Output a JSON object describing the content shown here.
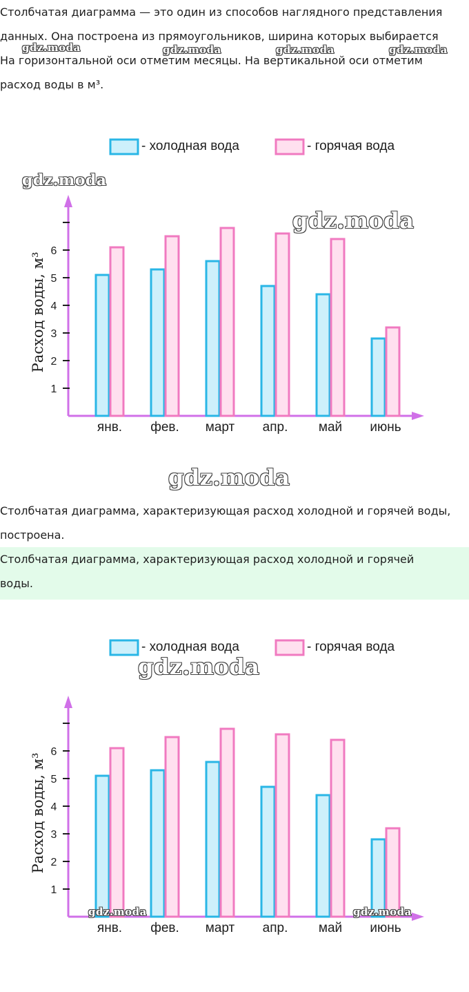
{
  "intro": {
    "line1": "Столбчатая диаграмма — это один из способов наглядного представления",
    "line2": "данных. Она построена из прямоугольников, ширина которых выбирается",
    "line3": "На горизонтальной оси отметим месяцы. На вертикальной оси отметим",
    "line4": "расход воды в м³."
  },
  "middle_text": {
    "line1": "Столбчатая диаграмма, характеризующая расход холодной и горячей воды,",
    "line2": "построена."
  },
  "answer_text": {
    "line1": "Столбчатая диаграмма, характеризующая расход холодной и горячей",
    "line2": "воды."
  },
  "watermark": "gdz.moda",
  "colors": {
    "cold_fill": "#cdf0fb",
    "cold_stroke": "#29b6e6",
    "hot_fill": "#ffe0ef",
    "hot_stroke": "#f07ac0",
    "axis": "#d070e8",
    "answer_bg": "#e3fbea"
  },
  "chart_data": [
    {
      "type": "bar",
      "categories": [
        "янв.",
        "фев.",
        "март",
        "апр.",
        "май",
        "июнь"
      ],
      "series": [
        {
          "name": "- холодная вода",
          "values": [
            5.1,
            5.3,
            5.6,
            4.7,
            4.4,
            2.8
          ]
        },
        {
          "name": "- горячая вода",
          "values": [
            6.1,
            6.5,
            6.8,
            6.6,
            6.4,
            3.2
          ]
        }
      ],
      "ylabel": "Расход воды, м³",
      "yticks": [
        1,
        2,
        3,
        4,
        5,
        6
      ],
      "ylim": [
        0,
        7
      ],
      "legend": "top"
    },
    {
      "type": "bar",
      "categories": [
        "янв.",
        "фев.",
        "март",
        "апр.",
        "май",
        "июнь"
      ],
      "series": [
        {
          "name": "- холодная вода",
          "values": [
            5.1,
            5.3,
            5.6,
            4.7,
            4.4,
            2.8
          ]
        },
        {
          "name": "- горячая вода",
          "values": [
            6.1,
            6.5,
            6.8,
            6.6,
            6.4,
            3.2
          ]
        }
      ],
      "ylabel": "Расход воды, м³",
      "yticks": [
        1,
        2,
        3,
        4,
        5,
        6
      ],
      "ylim": [
        0,
        7
      ],
      "legend": "top"
    }
  ]
}
